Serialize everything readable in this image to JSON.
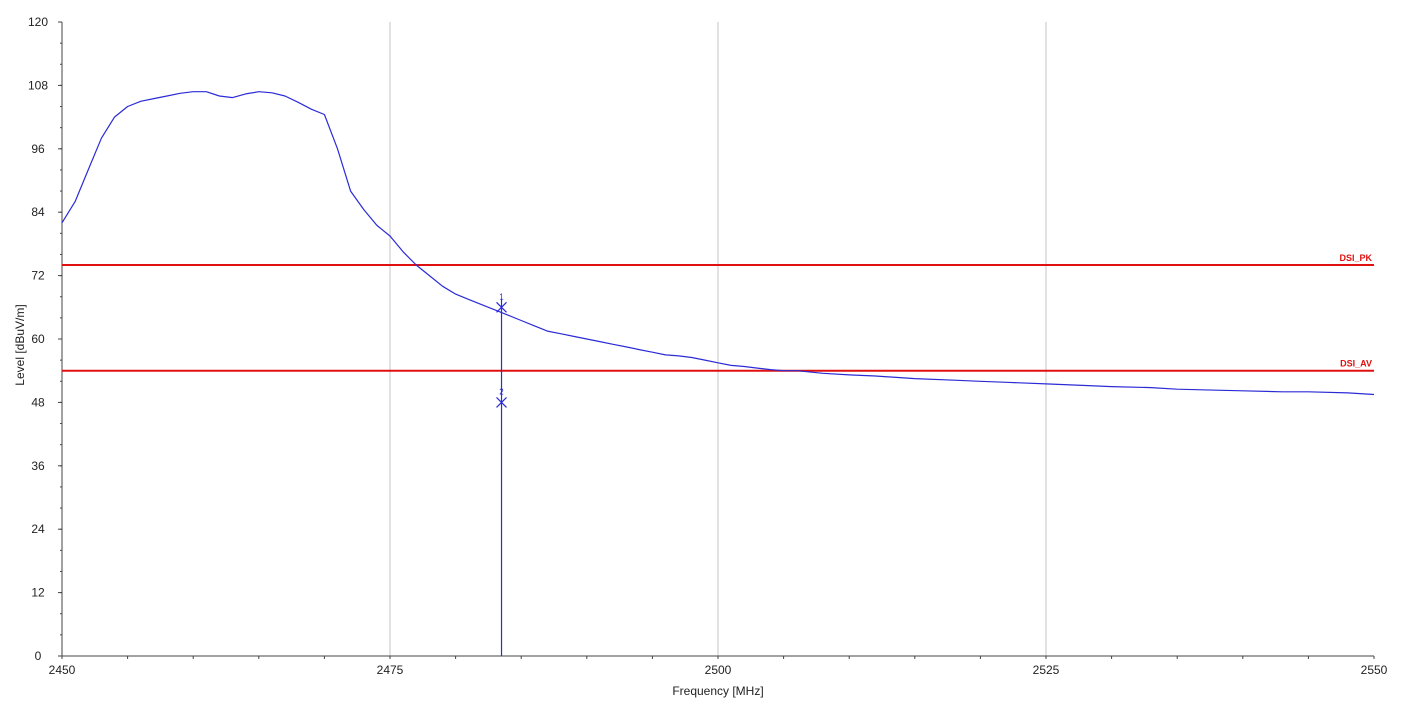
{
  "chart_data": {
    "type": "line",
    "xlabel": "Frequency [MHz]",
    "ylabel": "Level [dBuV/m]",
    "xlim": [
      2450,
      2550
    ],
    "ylim": [
      0,
      120
    ],
    "x_ticks": [
      2450,
      2475,
      2500,
      2525,
      2550
    ],
    "y_ticks": [
      0,
      12,
      24,
      36,
      48,
      60,
      72,
      84,
      96,
      108,
      120
    ],
    "grid": "vertical",
    "colors": {
      "trace": "#2b2bd6",
      "limits": "#e01010",
      "grid": "#d8d8d8"
    },
    "series": [
      {
        "x": [
          2450,
          2451,
          2452,
          2453,
          2454,
          2455,
          2456,
          2457,
          2458,
          2459,
          2460,
          2461,
          2462,
          2463,
          2464,
          2465,
          2466,
          2467,
          2468,
          2469,
          2470,
          2471,
          2472,
          2473,
          2474,
          2475,
          2476,
          2477,
          2478,
          2479,
          2480,
          2481,
          2482,
          2483,
          2484,
          2485,
          2486,
          2487,
          2488,
          2489,
          2490,
          2491,
          2492,
          2493,
          2494,
          2495,
          2496,
          2497,
          2498,
          2499,
          2500,
          2501,
          2502,
          2503,
          2504,
          2505,
          2506,
          2508,
          2510,
          2512,
          2515,
          2518,
          2520,
          2522,
          2525,
          2528,
          2530,
          2533,
          2535,
          2538,
          2540,
          2543,
          2545,
          2548,
          2550
        ],
        "y": [
          82,
          86,
          92,
          98,
          102,
          104,
          105,
          105.5,
          106,
          106.5,
          106.8,
          106.8,
          106,
          105.7,
          106.4,
          106.8,
          106.6,
          106,
          104.8,
          103.5,
          102.5,
          96,
          88,
          84.5,
          81.5,
          79.5,
          76.5,
          74,
          72,
          70,
          68.5,
          67.5,
          66.5,
          65.5,
          64.5,
          63.5,
          62.5,
          61.5,
          61,
          60.5,
          60,
          59.5,
          59,
          58.5,
          58,
          57.5,
          57,
          56.8,
          56.5,
          56,
          55.5,
          55,
          54.8,
          54.5,
          54.2,
          54,
          54,
          53.5,
          53.2,
          53,
          52.5,
          52.2,
          52,
          51.8,
          51.5,
          51.2,
          51,
          50.8,
          50.5,
          50.3,
          50.2,
          50,
          50,
          49.8,
          49.5
        ]
      }
    ],
    "limit_lines": [
      {
        "label": "DSI_PK",
        "y": 74
      },
      {
        "label": "DSI_AV",
        "y": 54
      }
    ],
    "markers": [
      {
        "label": "1",
        "x": 2483.5,
        "y": 66
      },
      {
        "label": "2",
        "x": 2483.5,
        "y": 48
      }
    ]
  }
}
